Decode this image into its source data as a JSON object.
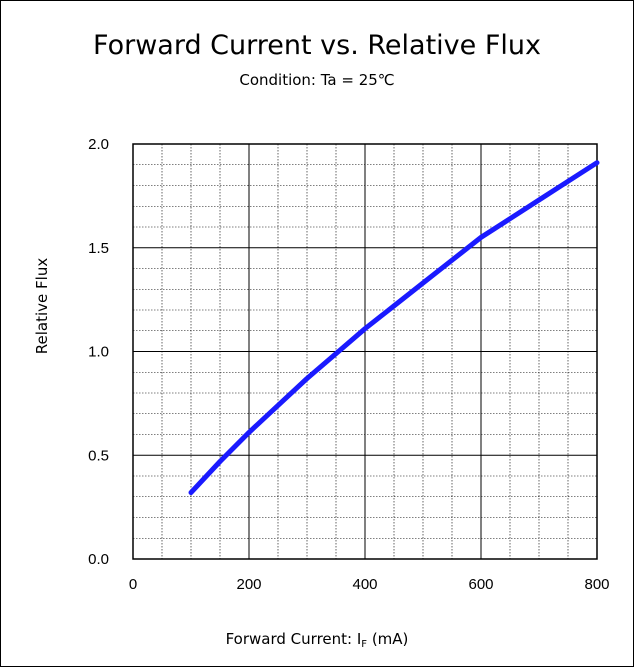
{
  "chart_data": {
    "type": "line",
    "title": "Forward Current vs. Relative Flux",
    "subtitle": "Condition: Ta = 25℃",
    "xlabel": "Forward Current: I",
    "xlabel_sub": "F",
    "xlabel_unit": " (mA)",
    "ylabel": "Relative Flux",
    "xlim": [
      0,
      800
    ],
    "ylim": [
      0,
      2.0
    ],
    "x_ticks": [
      "0",
      "200",
      "400",
      "600",
      "800"
    ],
    "y_ticks": [
      "0.0",
      "0.5",
      "1.0",
      "1.5",
      "2.0"
    ],
    "grid": true,
    "line_color": "#1a1aff",
    "series": [
      {
        "x": [
          100,
          150,
          200,
          250,
          300,
          350,
          400,
          450,
          500,
          550,
          600,
          650,
          700,
          750,
          800
        ],
        "values": [
          0.32,
          0.47,
          0.61,
          0.74,
          0.87,
          0.99,
          1.11,
          1.22,
          1.33,
          1.44,
          1.55,
          1.64,
          1.73,
          1.82,
          1.91
        ]
      }
    ]
  }
}
